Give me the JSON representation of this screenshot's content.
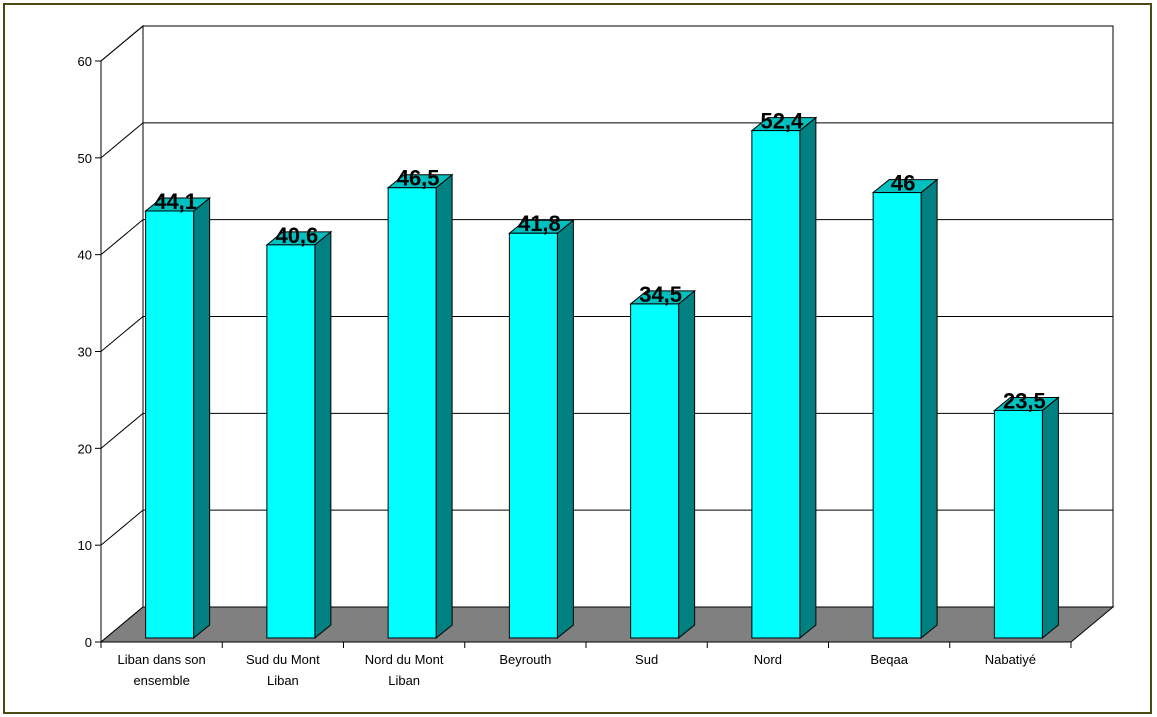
{
  "chart_data": {
    "type": "bar",
    "three_d": true,
    "categories": [
      [
        "Liban dans son",
        "ensemble"
      ],
      [
        "Sud du Mont",
        "Liban"
      ],
      [
        "Nord du Mont",
        "Liban"
      ],
      [
        "Beyrouth"
      ],
      [
        "Sud"
      ],
      [
        "Nord"
      ],
      [
        "Beqaa"
      ],
      [
        "Nabatiyé"
      ]
    ],
    "values": [
      44.1,
      40.6,
      46.5,
      41.8,
      34.5,
      52.4,
      46,
      23.5
    ],
    "value_labels": [
      "44,1",
      "40,6",
      "46,5",
      "41,8",
      "34,5",
      "52,4",
      "46",
      "23,5"
    ],
    "yticks": [
      "0",
      "10",
      "20",
      "30",
      "40",
      "50",
      "60"
    ],
    "ylim": [
      0,
      60
    ],
    "grid": true,
    "legend": "none",
    "colors": {
      "bar_front": "#00ffff",
      "bar_side": "#008080",
      "bar_top": "#00c0c0",
      "floor": "#808080",
      "border": "#4a4a14"
    }
  }
}
